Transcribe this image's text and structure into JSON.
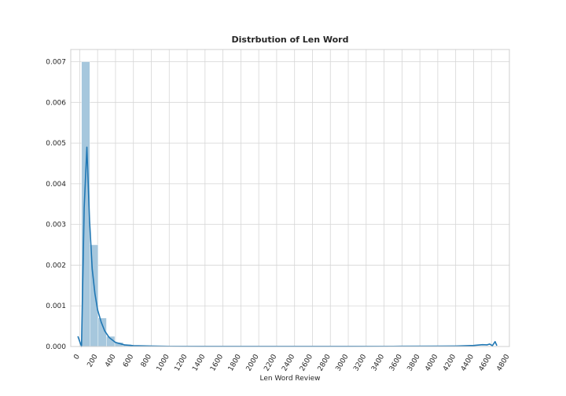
{
  "chart_data": {
    "type": "bar",
    "title": "Distrbution of Len Word",
    "xlabel": "Len Word Review",
    "ylabel": "",
    "xlim": [
      -100,
      4800
    ],
    "ylim": [
      0,
      0.0073
    ],
    "grid": true,
    "x_ticks": [
      0,
      200,
      400,
      600,
      800,
      1000,
      1200,
      1400,
      1600,
      1800,
      2000,
      2200,
      2400,
      2600,
      2800,
      3000,
      3200,
      3400,
      3600,
      3800,
      4000,
      4200,
      4400,
      4600,
      4800
    ],
    "y_ticks": [
      0.0,
      0.001,
      0.002,
      0.003,
      0.004,
      0.005,
      0.006,
      0.007
    ],
    "y_tick_labels": [
      "0.000",
      "0.001",
      "0.002",
      "0.003",
      "0.004",
      "0.005",
      "0.006",
      "0.007"
    ],
    "bins": {
      "start": 20,
      "width": 93,
      "values": [
        0.007,
        0.0025,
        0.0007,
        0.00025,
        0.0001,
        5e-05,
        3e-05,
        2e-05,
        1e-05,
        1e-05,
        5e-06,
        5e-06,
        3e-06,
        3e-06,
        2e-06,
        2e-06,
        2e-06,
        2e-06,
        1e-06,
        1e-06,
        1e-06,
        1e-06,
        1e-06,
        1e-06,
        1e-06,
        1e-06,
        1e-06,
        1e-06,
        1e-06,
        1e-06,
        1e-06,
        1e-06,
        1e-06,
        1e-06,
        1e-06,
        1e-06,
        1e-06,
        1e-06,
        1e-06,
        1e-06,
        1e-06,
        1e-06,
        1e-06,
        1e-06,
        1e-06,
        1e-06,
        1e-06,
        1e-06,
        1e-06,
        2e-06
      ]
    },
    "kde": {
      "x": [
        -20,
        20,
        50,
        80,
        110,
        140,
        170,
        200,
        240,
        280,
        330,
        400,
        500,
        600,
        800,
        1000,
        1500,
        2000,
        2500,
        3000,
        3500,
        4000,
        4200,
        4300,
        4400,
        4450,
        4500,
        4550,
        4580,
        4610,
        4640,
        4660
      ],
      "y": [
        0.00025,
        0.0,
        0.0034,
        0.0049,
        0.0031,
        0.0019,
        0.0013,
        0.0009,
        0.0006,
        0.00038,
        0.00022,
        0.0001,
        4e-05,
        2e-05,
        1e-05,
        5e-06,
        3e-06,
        3e-06,
        3e-06,
        3e-06,
        5e-06,
        8e-06,
        1.2e-05,
        1.8e-05,
        2.5e-05,
        3.5e-05,
        4.5e-05,
        4e-05,
        6e-05,
        2e-05,
        0.00012,
        2e-05
      ]
    },
    "colors": {
      "bar": "#a6c7dd",
      "kde": "#1f77b4",
      "grid": "#d6d6d6",
      "frame": "#cfcfcf"
    }
  }
}
